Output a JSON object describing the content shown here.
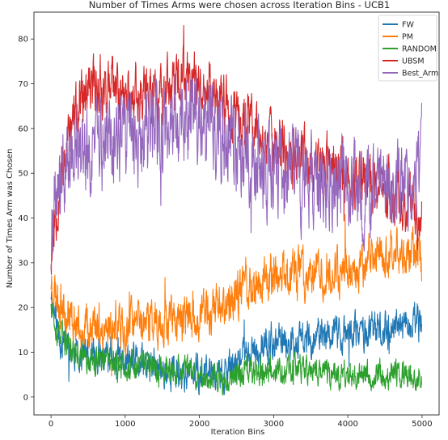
{
  "chart_data": {
    "type": "line",
    "title": "Number of Times Arms were chosen across Iteration Bins - UCB1",
    "xlabel": "Iteration Bins",
    "ylabel": "Number of Times Arm was Chosen",
    "xlim": [
      -230,
      5230
    ],
    "ylim": [
      -4,
      86
    ],
    "x_ticks": [
      0,
      1000,
      2000,
      3000,
      4000,
      5000
    ],
    "y_ticks": [
      0,
      10,
      20,
      30,
      40,
      50,
      60,
      70,
      80
    ],
    "legend_position": "top-right",
    "n_points": 5000,
    "series": [
      {
        "name": "FW",
        "color": "#1f77b4",
        "noise": 3.2,
        "seed": 11,
        "trend": [
          [
            0,
            24
          ],
          [
            100,
            14
          ],
          [
            300,
            10
          ],
          [
            600,
            9
          ],
          [
            1000,
            8
          ],
          [
            1500,
            6
          ],
          [
            2000,
            5
          ],
          [
            2300,
            5
          ],
          [
            2600,
            9
          ],
          [
            3000,
            12
          ],
          [
            3500,
            13
          ],
          [
            4000,
            14
          ],
          [
            4500,
            15
          ],
          [
            5000,
            16
          ]
        ]
      },
      {
        "name": "PM",
        "color": "#ff7f0e",
        "noise": 4.0,
        "seed": 23,
        "trend": [
          [
            0,
            26
          ],
          [
            100,
            22
          ],
          [
            300,
            17
          ],
          [
            600,
            15
          ],
          [
            1000,
            16
          ],
          [
            1500,
            17
          ],
          [
            2000,
            18
          ],
          [
            2300,
            20
          ],
          [
            2600,
            24
          ],
          [
            3000,
            27
          ],
          [
            3500,
            28
          ],
          [
            4000,
            29
          ],
          [
            4500,
            32
          ],
          [
            5000,
            32
          ]
        ]
      },
      {
        "name": "RANDOM",
        "color": "#2ca02c",
        "noise": 2.5,
        "seed": 37,
        "trend": [
          [
            0,
            22
          ],
          [
            100,
            14
          ],
          [
            300,
            10
          ],
          [
            600,
            8
          ],
          [
            1000,
            7
          ],
          [
            1500,
            6
          ],
          [
            2000,
            5
          ],
          [
            2300,
            4
          ],
          [
            2600,
            6
          ],
          [
            3000,
            6
          ],
          [
            3500,
            6
          ],
          [
            4000,
            5
          ],
          [
            4500,
            5
          ],
          [
            5000,
            5
          ]
        ]
      },
      {
        "name": "UBSM",
        "color": "#d62728",
        "noise": 5.0,
        "seed": 53,
        "trend": [
          [
            0,
            32
          ],
          [
            50,
            40
          ],
          [
            150,
            52
          ],
          [
            300,
            62
          ],
          [
            600,
            70
          ],
          [
            1000,
            68
          ],
          [
            1500,
            68
          ],
          [
            1900,
            72
          ],
          [
            2100,
            70
          ],
          [
            2500,
            62
          ],
          [
            3000,
            56
          ],
          [
            3500,
            52
          ],
          [
            4000,
            50
          ],
          [
            4500,
            47
          ],
          [
            5000,
            40
          ]
        ]
      },
      {
        "name": "Best_Arm",
        "color": "#9467bd",
        "noise": 7.5,
        "seed": 71,
        "trend": [
          [
            0,
            32
          ],
          [
            50,
            42
          ],
          [
            150,
            50
          ],
          [
            300,
            54
          ],
          [
            600,
            56
          ],
          [
            1000,
            58
          ],
          [
            1500,
            60
          ],
          [
            1900,
            62
          ],
          [
            2100,
            60
          ],
          [
            2500,
            56
          ],
          [
            3000,
            50
          ],
          [
            3500,
            48
          ],
          [
            4000,
            46
          ],
          [
            4500,
            46
          ],
          [
            5000,
            48
          ]
        ],
        "end_value": 68
      }
    ]
  }
}
